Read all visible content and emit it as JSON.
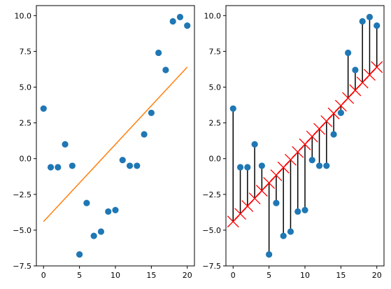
{
  "chart_data": [
    {
      "type": "scatter",
      "title": "",
      "xlabel": "",
      "ylabel": "",
      "xlim": [
        -1,
        21
      ],
      "ylim": [
        -7.5,
        10.7
      ],
      "xticks": [
        0,
        5,
        10,
        15,
        20
      ],
      "yticks": [
        -7.5,
        -5.0,
        -2.5,
        0.0,
        2.5,
        5.0,
        7.5,
        10.0
      ],
      "xtick_labels": [
        "0",
        "5",
        "10",
        "15",
        "20"
      ],
      "ytick_labels": [
        "−7.5",
        "−5.0",
        "−2.5",
        "0.0",
        "2.5",
        "5.0",
        "7.5",
        "10.0"
      ],
      "grid": false,
      "legend": "none",
      "series": [
        {
          "type": "scatter",
          "color": "#1f77b4",
          "x": [
            0,
            1,
            2,
            3,
            4,
            5,
            6,
            7,
            8,
            9,
            10,
            11,
            12,
            13,
            14,
            15,
            16,
            17,
            18,
            19,
            20
          ],
          "y": [
            3.5,
            -0.6,
            -0.6,
            1.0,
            -0.5,
            -6.7,
            -3.1,
            -5.4,
            -5.1,
            -3.7,
            -3.6,
            -0.1,
            -0.5,
            -0.5,
            1.7,
            3.2,
            7.4,
            6.2,
            9.6,
            9.9,
            9.3
          ]
        },
        {
          "type": "line",
          "color": "#ff7f0e",
          "x": [
            0,
            20
          ],
          "y": [
            -4.4,
            6.4
          ]
        }
      ]
    },
    {
      "type": "scatter",
      "title": "",
      "xlabel": "",
      "ylabel": "",
      "xlim": [
        -1,
        21
      ],
      "ylim": [
        -7.5,
        10.7
      ],
      "xticks": [
        0,
        5,
        10,
        15,
        20
      ],
      "yticks": [
        -7.5,
        -5.0,
        -2.5,
        0.0,
        2.5,
        5.0,
        7.5,
        10.0
      ],
      "xtick_labels": [
        "0",
        "5",
        "10",
        "15",
        "20"
      ],
      "ytick_labels": [
        "−7.5",
        "−5.0",
        "−2.5",
        "0.0",
        "2.5",
        "5.0",
        "7.5",
        "10.0"
      ],
      "grid": false,
      "legend": "none",
      "series": [
        {
          "type": "residuals",
          "color": "#000000",
          "x": [
            0,
            1,
            2,
            3,
            4,
            5,
            6,
            7,
            8,
            9,
            10,
            11,
            12,
            13,
            14,
            15,
            16,
            17,
            18,
            19,
            20
          ],
          "y_from": [
            3.5,
            -0.6,
            -0.6,
            1.0,
            -0.5,
            -6.7,
            -3.1,
            -5.4,
            -5.1,
            -3.7,
            -3.6,
            -0.1,
            -0.5,
            -0.5,
            1.7,
            3.2,
            7.4,
            6.2,
            9.6,
            9.9,
            9.3
          ],
          "y_to": [
            -4.4,
            -3.86,
            -3.32,
            -2.78,
            -2.24,
            -1.7,
            -1.16,
            -0.62,
            -0.08,
            0.46,
            1.0,
            1.54,
            2.08,
            2.62,
            3.16,
            3.7,
            4.24,
            4.78,
            5.32,
            5.86,
            6.4
          ]
        },
        {
          "type": "line",
          "color": "#ff0000",
          "marker": "x",
          "x": [
            0,
            1,
            2,
            3,
            4,
            5,
            6,
            7,
            8,
            9,
            10,
            11,
            12,
            13,
            14,
            15,
            16,
            17,
            18,
            19,
            20
          ],
          "y": [
            -4.4,
            -3.86,
            -3.32,
            -2.78,
            -2.24,
            -1.7,
            -1.16,
            -0.62,
            -0.08,
            0.46,
            1.0,
            1.54,
            2.08,
            2.62,
            3.16,
            3.7,
            4.24,
            4.78,
            5.32,
            5.86,
            6.4
          ]
        },
        {
          "type": "scatter",
          "color": "#1f77b4",
          "x": [
            0,
            1,
            2,
            3,
            4,
            5,
            6,
            7,
            8,
            9,
            10,
            11,
            12,
            13,
            14,
            15,
            16,
            17,
            18,
            19,
            20
          ],
          "y": [
            3.5,
            -0.6,
            -0.6,
            1.0,
            -0.5,
            -6.7,
            -3.1,
            -5.4,
            -5.1,
            -3.7,
            -3.6,
            -0.1,
            -0.5,
            -0.5,
            1.7,
            3.2,
            7.4,
            6.2,
            9.6,
            9.9,
            9.3
          ]
        }
      ]
    }
  ]
}
